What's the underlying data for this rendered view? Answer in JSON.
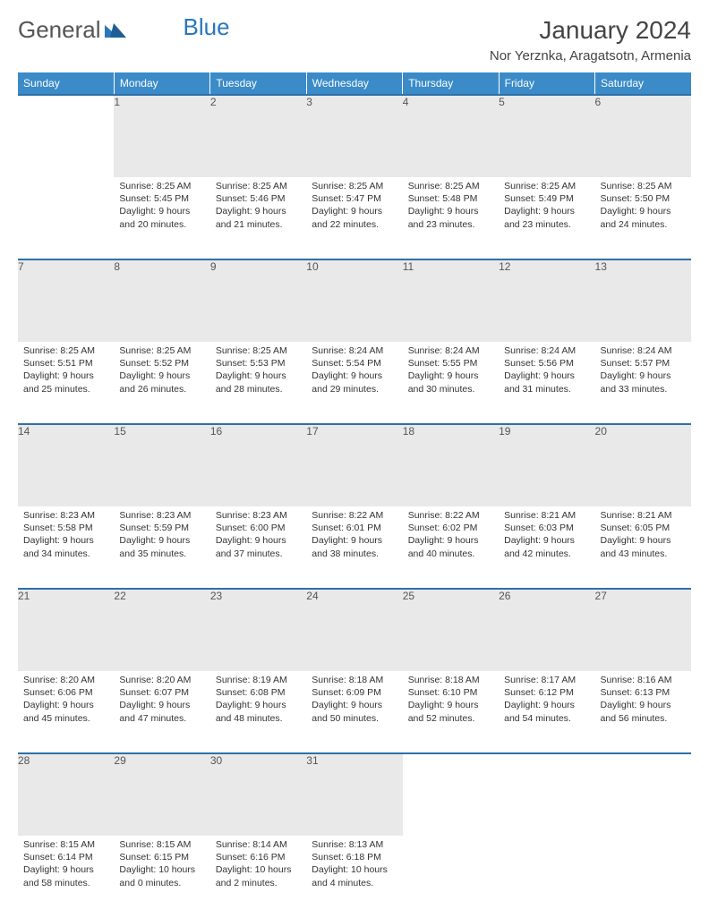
{
  "logo": {
    "text1": "General",
    "text2": "Blue"
  },
  "title": "January 2024",
  "location": "Nor Yerznka, Aragatsotn, Armenia",
  "colors": {
    "header_bg": "#3b8bc8",
    "header_text": "#ffffff",
    "daynum_bg": "#e9e9e9",
    "week_border": "#2f6fa8",
    "logo_accent": "#2a77bb"
  },
  "columns": [
    "Sunday",
    "Monday",
    "Tuesday",
    "Wednesday",
    "Thursday",
    "Friday",
    "Saturday"
  ],
  "weeks": [
    {
      "nums": [
        "",
        "1",
        "2",
        "3",
        "4",
        "5",
        "6"
      ],
      "cells": [
        {},
        {
          "sunrise": "Sunrise: 8:25 AM",
          "sunset": "Sunset: 5:45 PM",
          "day1": "Daylight: 9 hours",
          "day2": "and 20 minutes."
        },
        {
          "sunrise": "Sunrise: 8:25 AM",
          "sunset": "Sunset: 5:46 PM",
          "day1": "Daylight: 9 hours",
          "day2": "and 21 minutes."
        },
        {
          "sunrise": "Sunrise: 8:25 AM",
          "sunset": "Sunset: 5:47 PM",
          "day1": "Daylight: 9 hours",
          "day2": "and 22 minutes."
        },
        {
          "sunrise": "Sunrise: 8:25 AM",
          "sunset": "Sunset: 5:48 PM",
          "day1": "Daylight: 9 hours",
          "day2": "and 23 minutes."
        },
        {
          "sunrise": "Sunrise: 8:25 AM",
          "sunset": "Sunset: 5:49 PM",
          "day1": "Daylight: 9 hours",
          "day2": "and 23 minutes."
        },
        {
          "sunrise": "Sunrise: 8:25 AM",
          "sunset": "Sunset: 5:50 PM",
          "day1": "Daylight: 9 hours",
          "day2": "and 24 minutes."
        }
      ]
    },
    {
      "nums": [
        "7",
        "8",
        "9",
        "10",
        "11",
        "12",
        "13"
      ],
      "cells": [
        {
          "sunrise": "Sunrise: 8:25 AM",
          "sunset": "Sunset: 5:51 PM",
          "day1": "Daylight: 9 hours",
          "day2": "and 25 minutes."
        },
        {
          "sunrise": "Sunrise: 8:25 AM",
          "sunset": "Sunset: 5:52 PM",
          "day1": "Daylight: 9 hours",
          "day2": "and 26 minutes."
        },
        {
          "sunrise": "Sunrise: 8:25 AM",
          "sunset": "Sunset: 5:53 PM",
          "day1": "Daylight: 9 hours",
          "day2": "and 28 minutes."
        },
        {
          "sunrise": "Sunrise: 8:24 AM",
          "sunset": "Sunset: 5:54 PM",
          "day1": "Daylight: 9 hours",
          "day2": "and 29 minutes."
        },
        {
          "sunrise": "Sunrise: 8:24 AM",
          "sunset": "Sunset: 5:55 PM",
          "day1": "Daylight: 9 hours",
          "day2": "and 30 minutes."
        },
        {
          "sunrise": "Sunrise: 8:24 AM",
          "sunset": "Sunset: 5:56 PM",
          "day1": "Daylight: 9 hours",
          "day2": "and 31 minutes."
        },
        {
          "sunrise": "Sunrise: 8:24 AM",
          "sunset": "Sunset: 5:57 PM",
          "day1": "Daylight: 9 hours",
          "day2": "and 33 minutes."
        }
      ]
    },
    {
      "nums": [
        "14",
        "15",
        "16",
        "17",
        "18",
        "19",
        "20"
      ],
      "cells": [
        {
          "sunrise": "Sunrise: 8:23 AM",
          "sunset": "Sunset: 5:58 PM",
          "day1": "Daylight: 9 hours",
          "day2": "and 34 minutes."
        },
        {
          "sunrise": "Sunrise: 8:23 AM",
          "sunset": "Sunset: 5:59 PM",
          "day1": "Daylight: 9 hours",
          "day2": "and 35 minutes."
        },
        {
          "sunrise": "Sunrise: 8:23 AM",
          "sunset": "Sunset: 6:00 PM",
          "day1": "Daylight: 9 hours",
          "day2": "and 37 minutes."
        },
        {
          "sunrise": "Sunrise: 8:22 AM",
          "sunset": "Sunset: 6:01 PM",
          "day1": "Daylight: 9 hours",
          "day2": "and 38 minutes."
        },
        {
          "sunrise": "Sunrise: 8:22 AM",
          "sunset": "Sunset: 6:02 PM",
          "day1": "Daylight: 9 hours",
          "day2": "and 40 minutes."
        },
        {
          "sunrise": "Sunrise: 8:21 AM",
          "sunset": "Sunset: 6:03 PM",
          "day1": "Daylight: 9 hours",
          "day2": "and 42 minutes."
        },
        {
          "sunrise": "Sunrise: 8:21 AM",
          "sunset": "Sunset: 6:05 PM",
          "day1": "Daylight: 9 hours",
          "day2": "and 43 minutes."
        }
      ]
    },
    {
      "nums": [
        "21",
        "22",
        "23",
        "24",
        "25",
        "26",
        "27"
      ],
      "cells": [
        {
          "sunrise": "Sunrise: 8:20 AM",
          "sunset": "Sunset: 6:06 PM",
          "day1": "Daylight: 9 hours",
          "day2": "and 45 minutes."
        },
        {
          "sunrise": "Sunrise: 8:20 AM",
          "sunset": "Sunset: 6:07 PM",
          "day1": "Daylight: 9 hours",
          "day2": "and 47 minutes."
        },
        {
          "sunrise": "Sunrise: 8:19 AM",
          "sunset": "Sunset: 6:08 PM",
          "day1": "Daylight: 9 hours",
          "day2": "and 48 minutes."
        },
        {
          "sunrise": "Sunrise: 8:18 AM",
          "sunset": "Sunset: 6:09 PM",
          "day1": "Daylight: 9 hours",
          "day2": "and 50 minutes."
        },
        {
          "sunrise": "Sunrise: 8:18 AM",
          "sunset": "Sunset: 6:10 PM",
          "day1": "Daylight: 9 hours",
          "day2": "and 52 minutes."
        },
        {
          "sunrise": "Sunrise: 8:17 AM",
          "sunset": "Sunset: 6:12 PM",
          "day1": "Daylight: 9 hours",
          "day2": "and 54 minutes."
        },
        {
          "sunrise": "Sunrise: 8:16 AM",
          "sunset": "Sunset: 6:13 PM",
          "day1": "Daylight: 9 hours",
          "day2": "and 56 minutes."
        }
      ]
    },
    {
      "nums": [
        "28",
        "29",
        "30",
        "31",
        "",
        "",
        ""
      ],
      "cells": [
        {
          "sunrise": "Sunrise: 8:15 AM",
          "sunset": "Sunset: 6:14 PM",
          "day1": "Daylight: 9 hours",
          "day2": "and 58 minutes."
        },
        {
          "sunrise": "Sunrise: 8:15 AM",
          "sunset": "Sunset: 6:15 PM",
          "day1": "Daylight: 10 hours",
          "day2": "and 0 minutes."
        },
        {
          "sunrise": "Sunrise: 8:14 AM",
          "sunset": "Sunset: 6:16 PM",
          "day1": "Daylight: 10 hours",
          "day2": "and 2 minutes."
        },
        {
          "sunrise": "Sunrise: 8:13 AM",
          "sunset": "Sunset: 6:18 PM",
          "day1": "Daylight: 10 hours",
          "day2": "and 4 minutes."
        },
        {},
        {},
        {}
      ]
    }
  ]
}
